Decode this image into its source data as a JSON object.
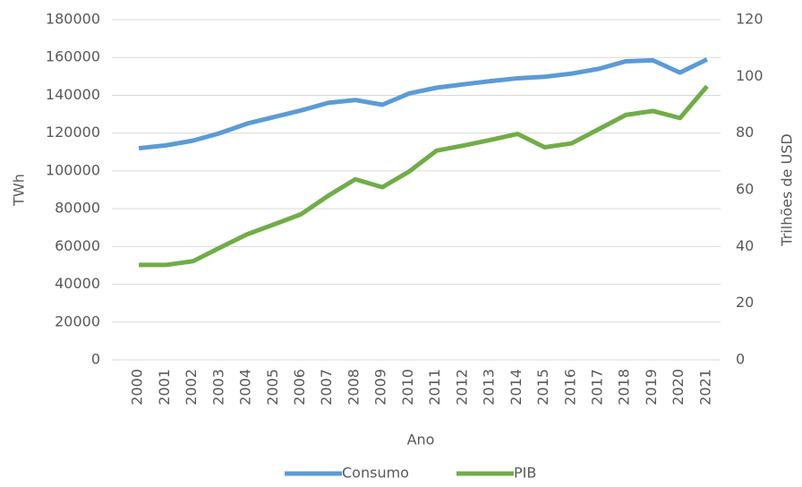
{
  "chart_data": {
    "type": "line",
    "categories": [
      "2000",
      "2001",
      "2002",
      "2003",
      "2004",
      "2005",
      "2006",
      "2007",
      "2008",
      "2009",
      "2010",
      "2011",
      "2012",
      "2013",
      "2014",
      "2015",
      "2016",
      "2017",
      "2018",
      "2019",
      "2020",
      "2021"
    ],
    "series": [
      {
        "name": "Consumo",
        "color": "#5b9bd5",
        "values": [
          112000,
          113500,
          116000,
          120000,
          125000,
          128500,
          132000,
          136000,
          137500,
          135000,
          141000,
          144000,
          145800,
          147500,
          149000,
          149800,
          151500,
          154000,
          158000,
          158500,
          152000,
          159000
        ]
      },
      {
        "name": "PIB",
        "color": "#70ad47",
        "axis": "y2",
        "values": [
          33.5,
          33.5,
          34.8,
          39.6,
          44.3,
          47.8,
          51.4,
          57.9,
          63.7,
          60.9,
          66.5,
          73.8,
          75.6,
          77.6,
          79.7,
          75.0,
          76.4,
          81.4,
          86.4,
          87.8,
          85.3,
          96.5
        ]
      }
    ],
    "ylabel": "TWh",
    "y2label": "Trilhões de USD",
    "xlabel": "Ano",
    "ylim": [
      0,
      180000
    ],
    "yticks": [
      0,
      20000,
      40000,
      60000,
      80000,
      100000,
      120000,
      140000,
      160000,
      180000
    ],
    "y2lim": [
      0,
      120
    ],
    "y2ticks": [
      0,
      20,
      40,
      60,
      80,
      100,
      120
    ],
    "grid": true,
    "legend": "bottom"
  }
}
